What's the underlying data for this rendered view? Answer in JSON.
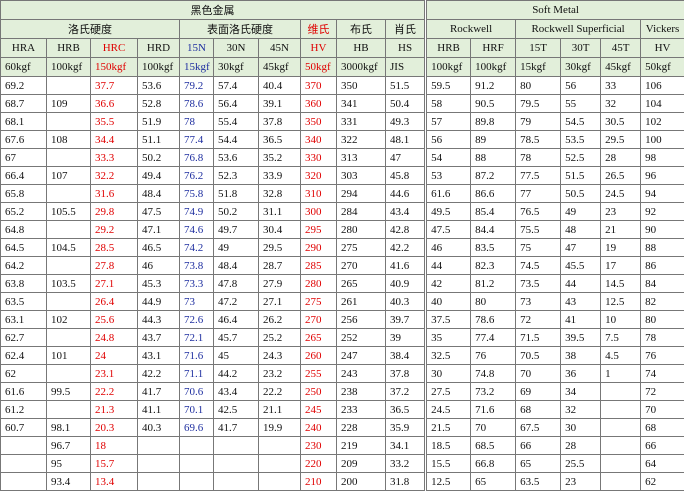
{
  "table": {
    "title": "黑色金属",
    "soft_title": "Soft Metal",
    "groups": [
      "洛氏硬度",
      "表面洛氏硬度",
      "维氏",
      "布氏",
      "肖氏",
      "Rockwell",
      "Rockwell Superficial",
      "Vickers"
    ],
    "columns": [
      "HRA",
      "HRB",
      "HRC",
      "HRD",
      "15N",
      "30N",
      "45N",
      "HV",
      "HB",
      "HS",
      "HRB",
      "HRF",
      "15T",
      "30T",
      "45T",
      "HV"
    ],
    "loads": [
      "60kgf",
      "100kgf",
      "150kgf",
      "100kgf",
      "15kgf",
      "30kgf",
      "45kgf",
      "50kgf",
      "3000kgf",
      "JIS",
      "100kgf",
      "100kgf",
      "15kgf",
      "30kgf",
      "45kgf",
      "50kgf"
    ],
    "rows": [
      [
        "69.2",
        null,
        "37.7",
        "53.6",
        "79.2",
        "57.4",
        "40.4",
        "370",
        "350",
        "51.5",
        "59.5",
        "91.2",
        "80",
        "56",
        "33",
        "106"
      ],
      [
        "68.7",
        "109",
        "36.6",
        "52.8",
        "78.6",
        "56.4",
        "39.1",
        "360",
        "341",
        "50.4",
        "58",
        "90.5",
        "79.5",
        "55",
        "32",
        "104"
      ],
      [
        "68.1",
        null,
        "35.5",
        "51.9",
        "78",
        "55.4",
        "37.8",
        "350",
        "331",
        "49.3",
        "57",
        "89.8",
        "79",
        "54.5",
        "30.5",
        "102"
      ],
      [
        "67.6",
        "108",
        "34.4",
        "51.1",
        "77.4",
        "54.4",
        "36.5",
        "340",
        "322",
        "48.1",
        "56",
        "89",
        "78.5",
        "53.5",
        "29.5",
        "100"
      ],
      [
        "67",
        null,
        "33.3",
        "50.2",
        "76.8",
        "53.6",
        "35.2",
        "330",
        "313",
        "47",
        "54",
        "88",
        "78",
        "52.5",
        "28",
        "98"
      ],
      [
        "66.4",
        "107",
        "32.2",
        "49.4",
        "76.2",
        "52.3",
        "33.9",
        "320",
        "303",
        "45.8",
        "53",
        "87.2",
        "77.5",
        "51.5",
        "26.5",
        "96"
      ],
      [
        "65.8",
        null,
        "31.6",
        "48.4",
        "75.8",
        "51.8",
        "32.8",
        "310",
        "294",
        "44.6",
        "61.6",
        "86.6",
        "77",
        "50.5",
        "24.5",
        "94"
      ],
      [
        "65.2",
        "105.5",
        "29.8",
        "47.5",
        "74.9",
        "50.2",
        "31.1",
        "300",
        "284",
        "43.4",
        "49.5",
        "85.4",
        "76.5",
        "49",
        "23",
        "92"
      ],
      [
        "64.8",
        null,
        "29.2",
        "47.1",
        "74.6",
        "49.7",
        "30.4",
        "295",
        "280",
        "42.8",
        "47.5",
        "84.4",
        "75.5",
        "48",
        "21",
        "90"
      ],
      [
        "64.5",
        "104.5",
        "28.5",
        "46.5",
        "74.2",
        "49",
        "29.5",
        "290",
        "275",
        "42.2",
        "46",
        "83.5",
        "75",
        "47",
        "19",
        "88"
      ],
      [
        "64.2",
        null,
        "27.8",
        "46",
        "73.8",
        "48.4",
        "28.7",
        "285",
        "270",
        "41.6",
        "44",
        "82.3",
        "74.5",
        "45.5",
        "17",
        "86"
      ],
      [
        "63.8",
        "103.5",
        "27.1",
        "45.3",
        "73.3",
        "47.8",
        "27.9",
        "280",
        "265",
        "40.9",
        "42",
        "81.2",
        "73.5",
        "44",
        "14.5",
        "84"
      ],
      [
        "63.5",
        null,
        "26.4",
        "44.9",
        "73",
        "47.2",
        "27.1",
        "275",
        "261",
        "40.3",
        "40",
        "80",
        "73",
        "43",
        "12.5",
        "82"
      ],
      [
        "63.1",
        "102",
        "25.6",
        "44.3",
        "72.6",
        "46.4",
        "26.2",
        "270",
        "256",
        "39.7",
        "37.5",
        "78.6",
        "72",
        "41",
        "10",
        "80"
      ],
      [
        "62.7",
        null,
        "24.8",
        "43.7",
        "72.1",
        "45.7",
        "25.2",
        "265",
        "252",
        "39",
        "35",
        "77.4",
        "71.5",
        "39.5",
        "7.5",
        "78"
      ],
      [
        "62.4",
        "101",
        "24",
        "43.1",
        "71.6",
        "45",
        "24.3",
        "260",
        "247",
        "38.4",
        "32.5",
        "76",
        "70.5",
        "38",
        "4.5",
        "76"
      ],
      [
        "62",
        null,
        "23.1",
        "42.2",
        "71.1",
        "44.2",
        "23.2",
        "255",
        "243",
        "37.8",
        "30",
        "74.8",
        "70",
        "36",
        "1",
        "74"
      ],
      [
        "61.6",
        "99.5",
        "22.2",
        "41.7",
        "70.6",
        "43.4",
        "22.2",
        "250",
        "238",
        "37.2",
        "27.5",
        "73.2",
        "69",
        "34",
        null,
        "72"
      ],
      [
        "61.2",
        null,
        "21.3",
        "41.1",
        "70.1",
        "42.5",
        "21.1",
        "245",
        "233",
        "36.5",
        "24.5",
        "71.6",
        "68",
        "32",
        null,
        "70"
      ],
      [
        "60.7",
        "98.1",
        "20.3",
        "40.3",
        "69.6",
        "41.7",
        "19.9",
        "240",
        "228",
        "35.9",
        "21.5",
        "70",
        "67.5",
        "30",
        null,
        "68"
      ],
      [
        null,
        "96.7",
        "18",
        null,
        null,
        null,
        null,
        "230",
        "219",
        "34.1",
        "18.5",
        "68.5",
        "66",
        "28",
        null,
        "66"
      ],
      [
        null,
        "95",
        "15.7",
        null,
        null,
        null,
        null,
        "220",
        "209",
        "33.2",
        "15.5",
        "66.8",
        "65",
        "25.5",
        null,
        "64"
      ],
      [
        null,
        "93.4",
        "13.4",
        null,
        null,
        null,
        null,
        "210",
        "200",
        "31.8",
        "12.5",
        "65",
        "63.5",
        "23",
        null,
        "62"
      ]
    ]
  }
}
